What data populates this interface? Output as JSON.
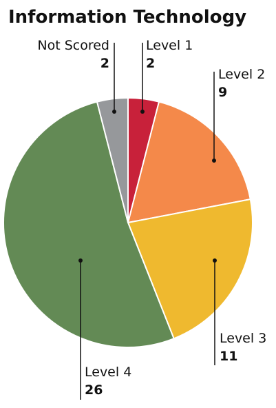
{
  "chart_data": {
    "type": "pie",
    "title": "Information Technology",
    "categories": [
      "Level 1",
      "Level 2",
      "Level 3",
      "Level 4",
      "Not Scored"
    ],
    "values": [
      2,
      9,
      11,
      26,
      2
    ],
    "colors": [
      "#c8213a",
      "#f4894a",
      "#efb92f",
      "#638a55",
      "#96989b"
    ]
  }
}
